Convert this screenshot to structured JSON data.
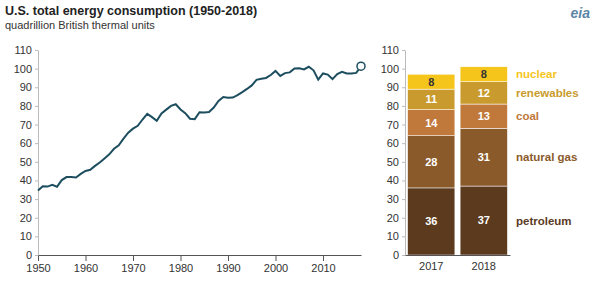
{
  "logo": "eia",
  "chart_data": [
    {
      "type": "line",
      "title": "U.S. total energy consumption (1950-2018)",
      "subtitle": "quadrillion British thermal units",
      "x": [
        1950,
        1951,
        1952,
        1953,
        1954,
        1955,
        1956,
        1957,
        1958,
        1959,
        1960,
        1961,
        1962,
        1963,
        1964,
        1965,
        1966,
        1967,
        1968,
        1969,
        1970,
        1971,
        1972,
        1973,
        1974,
        1975,
        1976,
        1977,
        1978,
        1979,
        1980,
        1981,
        1982,
        1983,
        1984,
        1985,
        1986,
        1987,
        1988,
        1989,
        1990,
        1991,
        1992,
        1993,
        1994,
        1995,
        1996,
        1997,
        1998,
        1999,
        2000,
        2001,
        2002,
        2003,
        2004,
        2005,
        2006,
        2007,
        2008,
        2009,
        2010,
        2011,
        2012,
        2013,
        2014,
        2015,
        2016,
        2017,
        2018
      ],
      "values": [
        34.6,
        36.9,
        36.7,
        37.6,
        36.6,
        40.2,
        41.8,
        41.8,
        41.6,
        43.5,
        45.1,
        45.7,
        47.8,
        49.6,
        51.8,
        54.0,
        57.0,
        58.9,
        62.4,
        65.6,
        67.8,
        69.3,
        72.7,
        75.7,
        74.0,
        72.0,
        76.0,
        78.0,
        80.0,
        80.9,
        78.1,
        76.1,
        73.1,
        72.9,
        76.6,
        76.4,
        76.7,
        79.1,
        82.7,
        84.8,
        84.4,
        84.5,
        85.8,
        87.4,
        89.1,
        91.0,
        94.0,
        94.6,
        95.0,
        96.6,
        98.8,
        96.1,
        97.6,
        98.0,
        100.1,
        100.2,
        99.6,
        101.0,
        99.1,
        94.1,
        97.4,
        96.8,
        94.4,
        97.1,
        98.3,
        97.4,
        97.4,
        97.7,
        101.3
      ],
      "color": "#1d4e5f",
      "xlim": [
        1950,
        2018
      ],
      "xticks": [
        1950,
        1960,
        1970,
        1980,
        1990,
        2000,
        2010
      ],
      "ylim": [
        0,
        110
      ],
      "yticks": [
        0,
        10,
        20,
        30,
        40,
        50,
        60,
        70,
        80,
        90,
        100,
        110
      ],
      "grid": false
    },
    {
      "type": "bar",
      "stacked": true,
      "data_labels": true,
      "legend": "right",
      "categories": [
        "2017",
        "2018"
      ],
      "series": [
        {
          "name": "petroleum",
          "color": "#5b3a1d",
          "values": [
            36,
            37
          ]
        },
        {
          "name": "natural gas",
          "color": "#8b5a2b",
          "values": [
            28,
            31
          ]
        },
        {
          "name": "coal",
          "color": "#c0793b",
          "values": [
            14,
            13
          ]
        },
        {
          "name": "renewables",
          "color": "#c99b2e",
          "values": [
            11,
            12
          ]
        },
        {
          "name": "nuclear",
          "color": "#f5c51c",
          "values": [
            8,
            8
          ]
        }
      ],
      "ylim": [
        0,
        110
      ],
      "yticks": [
        0,
        10,
        20,
        30,
        40,
        50,
        60,
        70,
        80,
        90,
        100,
        110
      ],
      "grid": false
    }
  ]
}
